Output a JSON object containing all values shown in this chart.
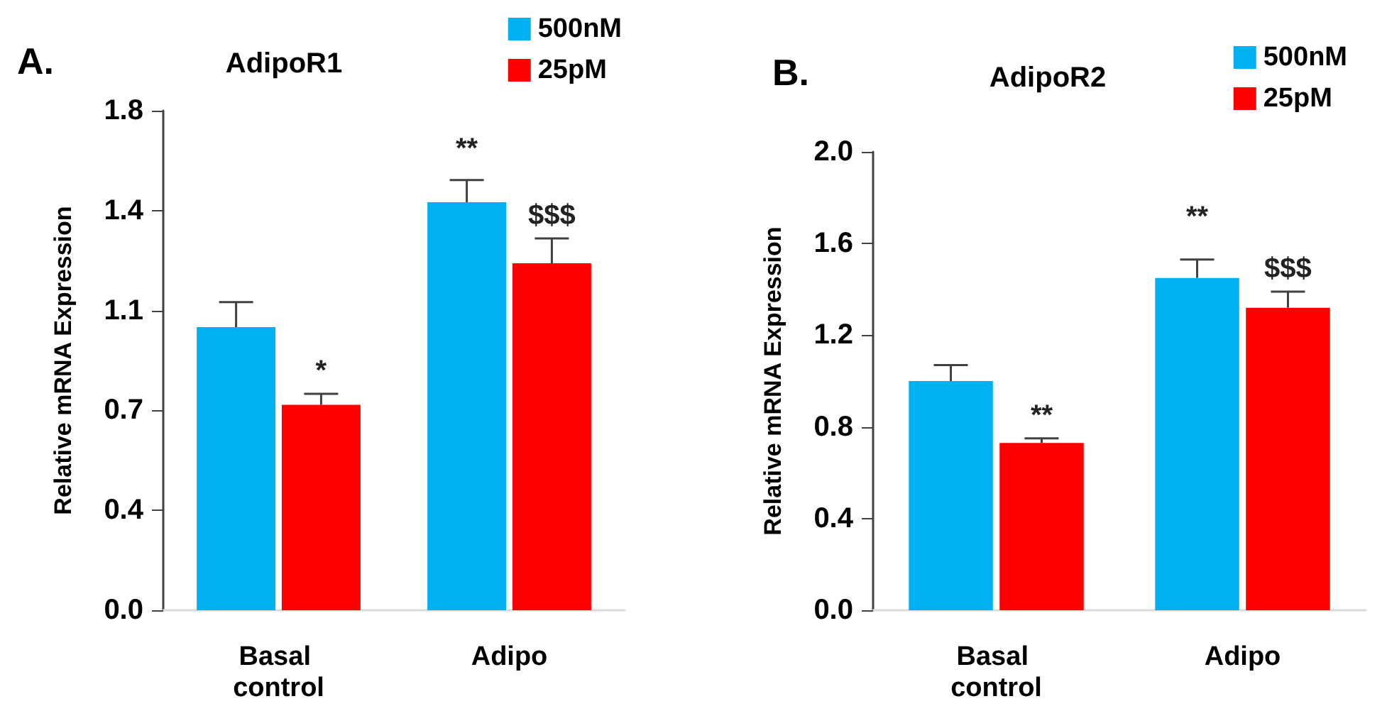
{
  "chart_data": [
    {
      "type": "bar",
      "title": "AdipoR1",
      "ylabel": "Relative mRNA Expression",
      "categories": [
        "Basal control",
        "Adipo"
      ],
      "series": [
        {
          "name": "500nM",
          "color": "#00b0f0",
          "values": [
            1.02,
            1.47
          ],
          "errors": [
            [
              1.02,
              1.11
            ],
            [
              1.47,
              1.55
            ]
          ]
        },
        {
          "name": "25pM",
          "color": "#ff0000",
          "values": [
            0.74,
            1.25
          ],
          "errors": [
            [
              0.74,
              0.78
            ],
            [
              1.25,
              1.34
            ]
          ]
        }
      ],
      "ylim": [
        0,
        1.8
      ],
      "yticks": [
        {
          "value": 0,
          "label": "0.0"
        },
        {
          "value": 0.36,
          "label": "0.4"
        },
        {
          "value": 0.72,
          "label": "0.7"
        },
        {
          "value": 1.08,
          "label": "1.1"
        },
        {
          "value": 1.44,
          "label": "1.4"
        },
        {
          "value": 1.8,
          "label": "1.8"
        }
      ],
      "legend": "top right",
      "annotations": [
        "A.",
        {
          "text": "*",
          "x": "Basal control",
          "y": 0.78
        },
        "**",
        {
          "text": "$$$",
          "x": "Adipo",
          "y": 1.34
        }
      ]
    },
    {
      "type": "bar",
      "title": "AdipoR2",
      "ylabel": "Relative mRNA Expression",
      "categories": [
        "Basal control",
        "Adipo"
      ],
      "series": [
        {
          "name": "500nM",
          "color": "#00b0f0",
          "values": [
            1.0,
            1.45
          ],
          "errors": [
            [
              1.0,
              1.07
            ],
            [
              1.45,
              1.53
            ]
          ]
        },
        {
          "name": "25pM",
          "color": "#ff0000",
          "values": [
            0.73,
            1.32
          ],
          "errors": [
            [
              0.73,
              0.75
            ],
            [
              1.32,
              1.39
            ]
          ]
        }
      ],
      "ylim": [
        0,
        2.0
      ],
      "yticks": [
        {
          "value": 0,
          "label": "0.0"
        },
        {
          "value": 0.4,
          "label": "0.4"
        },
        {
          "value": 0.8,
          "label": "0.8"
        },
        {
          "value": 1.2,
          "label": "1.2"
        },
        {
          "value": 1.6,
          "label": "1.6"
        },
        {
          "value": 2.0,
          "label": "2.0"
        }
      ],
      "legend": "top right",
      "annotations": [
        "B.",
        {
          "text": "**",
          "x": "Basal control",
          "y": 0.75
        },
        "**",
        {
          "text": "$$$",
          "x": "Adipo",
          "y": 1.39
        }
      ]
    }
  ]
}
